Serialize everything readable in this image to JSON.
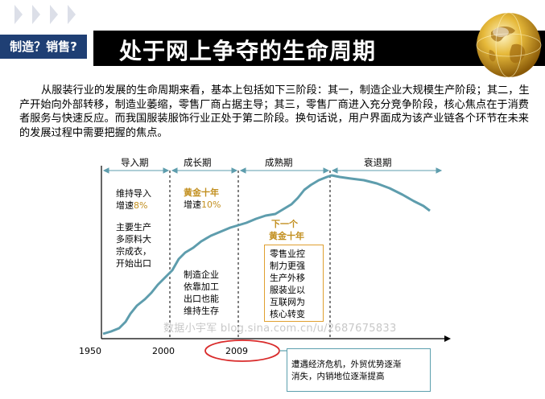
{
  "tag_label": "制造？销售?",
  "title": "处于网上争夺的生命周期",
  "paragraph": "从服装行业的发展的生命周期来看，基本上包括如下三阶段：其一，制造企业大规模生产阶段；其二，生产开始向外部转移，制造业萎缩，零售厂商占据主导；其三，零售厂商进入充分竞争阶段，核心焦点在于消费者服务与快速反应。而我国服装服饰行业正处于第二阶段。换句话说，用户界面成为该产业链各个环节在未来的发展过程中需要把握的焦点。",
  "phases": [
    "导入期",
    "成长期",
    "成熟期",
    "衰退期"
  ],
  "notes": {
    "intro_1": "维持导入",
    "intro_2_prefix": "增速",
    "intro_2_value": "8%",
    "intro_products": [
      "主要生产",
      "多原料大",
      "宗成衣，",
      "开始出口"
    ],
    "growth_title": "黄金十年",
    "growth_rate_prefix": "增速",
    "growth_rate_value": "10%",
    "growth_manufacturing": [
      "制造企业",
      "依靠加工",
      "出口也能",
      "维持生存"
    ],
    "next_gold": [
      "下一个",
      "黄金十年"
    ],
    "retail_box": [
      "零售业控",
      "制力更强",
      "生产外移",
      "服装业以",
      "互联网为",
      "核心转变"
    ],
    "crisis_box": [
      "遭遇经济危机，外贸优势逐渐",
      "消失，内销地位逐渐提高"
    ]
  },
  "years": [
    "1950",
    "2000",
    "2009"
  ],
  "watermark": "数据小宇军 blog.sina.com.cn/u/2687675833",
  "colors": {
    "tag_bg": "#1f3f74",
    "title_bar": "#000000",
    "curve": "#5e9dad",
    "gold_text": "#c28f1f",
    "retail_box_border": "#e0a030",
    "crisis_box_border": "#5c9fae",
    "highlight_ellipse": "#d92b2b",
    "chevrons": "#d9dbe6"
  }
}
